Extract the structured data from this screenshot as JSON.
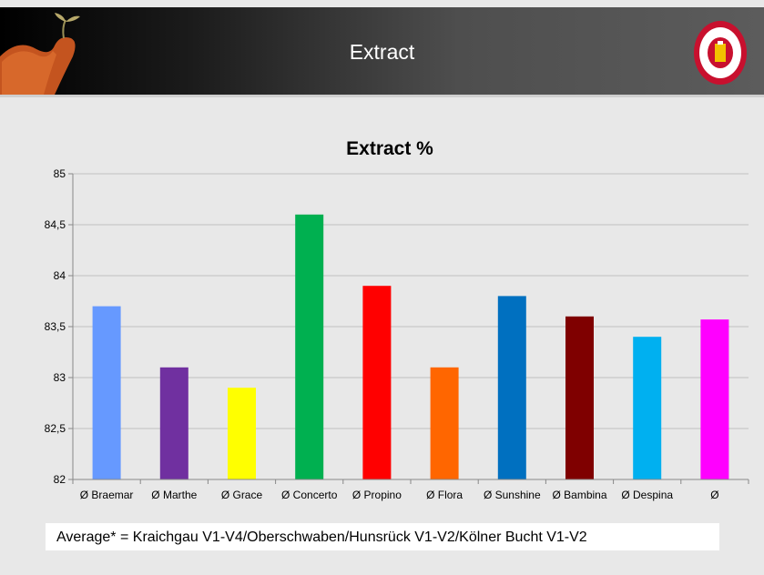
{
  "slide": {
    "title": "Extract"
  },
  "footnote": "Average* = Kraichgau V1-V4/Oberschwaben/Hunsrück V1-V2/Kölner Bucht V1-V2",
  "chart_data": {
    "type": "bar",
    "title": "Extract %",
    "categories": [
      "Ø Braemar",
      "Ø Marthe",
      "Ø Grace",
      "Ø Concerto",
      "Ø Propino",
      "Ø Flora",
      "Ø Sunshine",
      "Ø Bambina",
      "Ø Despina",
      "Ø"
    ],
    "values": [
      83.7,
      83.1,
      82.9,
      84.6,
      83.9,
      83.1,
      83.8,
      83.6,
      83.4,
      83.57
    ],
    "colors": [
      "#6699ff",
      "#7030a0",
      "#ffff00",
      "#00b050",
      "#ff0000",
      "#ff6600",
      "#0070c0",
      "#7f0000",
      "#00b0f0",
      "#ff00ff"
    ],
    "ylim": [
      82,
      85
    ],
    "yticks": [
      82,
      82.5,
      83,
      83.5,
      84,
      84.5,
      85
    ],
    "ytick_labels": [
      "82",
      "82,5",
      "83",
      "83,5",
      "84",
      "84,5",
      "85"
    ],
    "grid": true,
    "xlabel": "",
    "ylabel": ""
  }
}
